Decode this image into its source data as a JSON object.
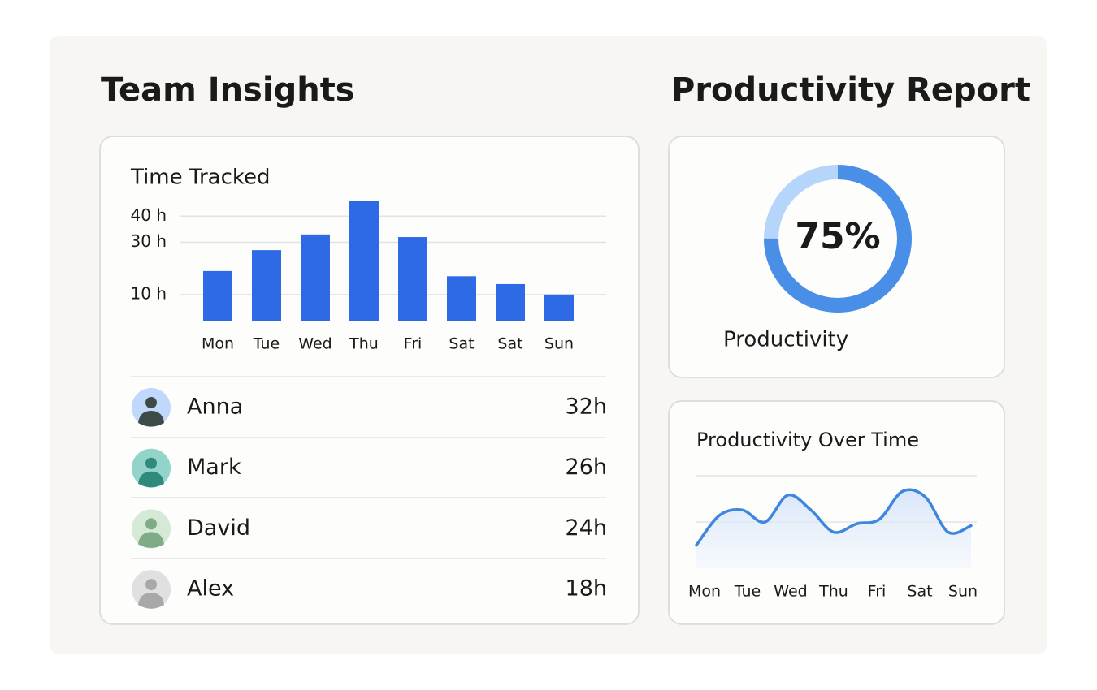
{
  "headers": [
    "Team Insights",
    "Productivity Report"
  ],
  "chart_data": [
    {
      "type": "bar",
      "title": "Time Tracked",
      "categories": [
        "Mon",
        "Tue",
        "Wed",
        "Thu",
        "Fri",
        "Sat",
        "Sat",
        "Sun"
      ],
      "values": [
        19,
        27,
        33,
        46,
        32,
        17,
        14,
        10
      ],
      "color": "#2f6ae6",
      "ylim": [
        0,
        46
      ],
      "yticks": [
        {
          "value": 10,
          "label": "10 h"
        },
        {
          "value": 30,
          "label": "30 h"
        },
        {
          "value": 40,
          "label": "40 h"
        }
      ],
      "grid": true
    },
    {
      "type": "donut",
      "values": [
        75
      ],
      "value_labels": [
        "75%"
      ],
      "caption": "Productivity",
      "ylim": [
        0,
        100
      ],
      "color": "#4a8fe7",
      "track_color": "#b5d5fb"
    },
    {
      "type": "line",
      "title": "Productivity Over Time",
      "categories": [
        "Mon",
        null,
        "Tue",
        null,
        "Wed",
        null,
        "Thu",
        null,
        "Fri",
        null,
        "Sat",
        null,
        "Sun"
      ],
      "values": [
        25,
        57,
        63,
        50,
        79,
        63,
        39,
        48,
        53,
        83,
        77,
        39,
        46
      ],
      "color": "#3f86de",
      "ylim": [
        0,
        100
      ],
      "yticks": [
        50,
        100
      ],
      "grid": true
    }
  ],
  "members": [
    {
      "name": "Anna",
      "hours": "32h",
      "color": "#bfd8fb",
      "figure_color": "#3e4a45"
    },
    {
      "name": "Mark",
      "hours": "26h",
      "color": "#92d4ca",
      "figure_color": "#2f8a7d"
    },
    {
      "name": "David",
      "hours": "24h",
      "color": "#d5e9d7",
      "figure_color": "#80ab87"
    },
    {
      "name": "Alex",
      "hours": "18h",
      "color": "#e0e0e0",
      "figure_color": "#a8a8a8"
    }
  ]
}
